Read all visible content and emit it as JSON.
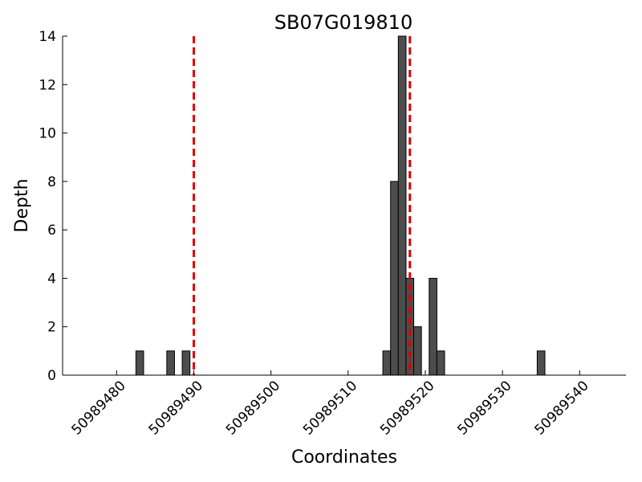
{
  "chart_data": {
    "type": "bar",
    "title": "SB07G019810",
    "xlabel": "Coordinates",
    "ylabel": "Depth",
    "xlim": [
      50989473,
      50989546
    ],
    "ylim": [
      0,
      14
    ],
    "x_ticks": [
      50989480,
      50989490,
      50989500,
      50989510,
      50989520,
      50989530,
      50989540
    ],
    "y_ticks": [
      0,
      2,
      4,
      6,
      8,
      10,
      12,
      14
    ],
    "bar_width": 1,
    "bar_color": "#4d4d4d",
    "bars": [
      {
        "x": 50989483,
        "y": 1
      },
      {
        "x": 50989487,
        "y": 1
      },
      {
        "x": 50989489,
        "y": 1
      },
      {
        "x": 50989515,
        "y": 1
      },
      {
        "x": 50989516,
        "y": 8
      },
      {
        "x": 50989517,
        "y": 14
      },
      {
        "x": 50989518,
        "y": 4
      },
      {
        "x": 50989519,
        "y": 2
      },
      {
        "x": 50989521,
        "y": 4
      },
      {
        "x": 50989522,
        "y": 1
      },
      {
        "x": 50989535,
        "y": 1
      }
    ],
    "vlines": [
      {
        "x": 50989490,
        "color": "#e00000",
        "style": "dashed"
      },
      {
        "x": 50989518,
        "color": "#e00000",
        "style": "dashed"
      }
    ],
    "grid": false
  }
}
